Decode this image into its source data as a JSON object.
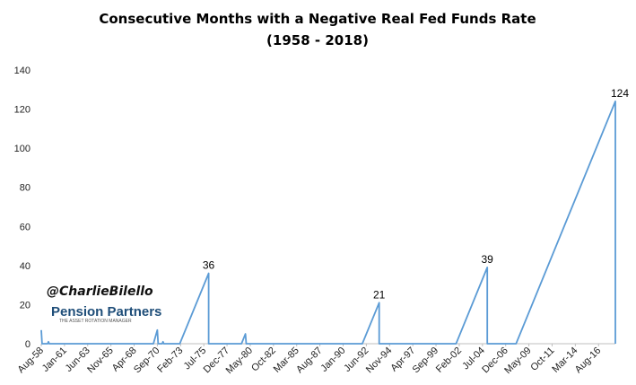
{
  "chart_data": {
    "type": "line",
    "title": "Consecutive Months with a Negative Real Fed Funds Rate",
    "subtitle": "(1958 - 2018)",
    "xlabel": "",
    "ylabel": "",
    "ylim": [
      0,
      140
    ],
    "yticks": [
      0,
      20,
      40,
      60,
      80,
      100,
      120,
      140
    ],
    "xticks": [
      "Aug-58",
      "Jan-61",
      "Jun-63",
      "Nov-65",
      "Apr-68",
      "Sep-70",
      "Feb-73",
      "Jul-75",
      "Dec-77",
      "May-80",
      "Oct-82",
      "Mar-85",
      "Aug-87",
      "Jan-90",
      "Jun-92",
      "Nov-94",
      "Apr-97",
      "Sep-99",
      "Feb-02",
      "Jul-04",
      "Dec-06",
      "May-09",
      "Oct-11",
      "Mar-14",
      "Aug-16"
    ],
    "grid": false,
    "legend": "none",
    "color": "#5b9bd5",
    "series": [
      {
        "points": [
          [
            "Aug-58",
            7
          ],
          [
            "Sep-58",
            0
          ],
          [
            "Apr-59",
            0
          ],
          [
            "May-59",
            1
          ],
          [
            "Jun-59",
            0
          ],
          [
            "Apr-70",
            0
          ],
          [
            "Sep-70",
            7
          ],
          [
            "Oct-70",
            0
          ],
          [
            "Mar-71",
            0
          ],
          [
            "Apr-71",
            1
          ],
          [
            "May-71",
            0
          ],
          [
            "Jan-73",
            0
          ],
          [
            "Jan-76",
            36
          ],
          [
            "Jan-76",
            0
          ],
          [
            "Jun-79",
            0
          ],
          [
            "Nov-79",
            5
          ],
          [
            "Dec-79",
            0
          ],
          [
            "Jan-92",
            0
          ],
          [
            "Oct-93",
            21
          ],
          [
            "Oct-93",
            0
          ],
          [
            "Oct-01",
            0
          ],
          [
            "Jan-05",
            39
          ],
          [
            "Jan-05",
            0
          ],
          [
            "Jan-08",
            0
          ],
          [
            "May-18",
            124
          ],
          [
            "May-18",
            0
          ]
        ]
      }
    ],
    "data_labels": [
      {
        "x": "Jan-76",
        "value": "36"
      },
      {
        "x": "Oct-93",
        "value": "21"
      },
      {
        "x": "Jan-05",
        "value": "39"
      },
      {
        "x": "May-18",
        "value": "124"
      }
    ]
  },
  "watermark": {
    "handle": "@CharlieBilello",
    "brand": "Pension Partners",
    "tagline": "THE ASSET ROTATION MANAGER"
  }
}
